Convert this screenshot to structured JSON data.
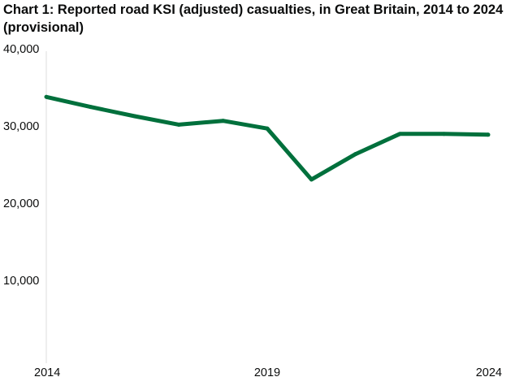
{
  "title": "Chart 1: Reported road KSI (adjusted) casualties, in Great Britain, 2014 to 2024 (provisional)",
  "chart_data": {
    "type": "line",
    "title": "Chart 1: Reported road KSI (adjusted) casualties, in Great Britain, 2014 to 2024 (provisional)",
    "xlabel": "",
    "ylabel": "",
    "grid": false,
    "legend": "none",
    "xlim": [
      2014,
      2024
    ],
    "ylim": [
      0,
      40000
    ],
    "x": [
      2014,
      2015,
      2016,
      2017,
      2018,
      2019,
      2020,
      2021,
      2022,
      2023,
      2024
    ],
    "series": [
      {
        "name": "Reported road KSI (adjusted) casualties",
        "color": "#00703c",
        "values": [
          34500,
          33200,
          32000,
          30900,
          31400,
          30400,
          23800,
          27100,
          29700,
          29700,
          29600
        ]
      }
    ],
    "y_ticks": [
      {
        "value": 10000,
        "label": "10,000"
      },
      {
        "value": 20000,
        "label": "20,000"
      },
      {
        "value": 30000,
        "label": "30,000"
      },
      {
        "value": 40000,
        "label": "40,000"
      }
    ],
    "x_ticks": [
      {
        "value": 2014,
        "label": "2014"
      },
      {
        "value": 2019,
        "label": "2019"
      },
      {
        "value": 2024,
        "label": "2024"
      }
    ]
  }
}
